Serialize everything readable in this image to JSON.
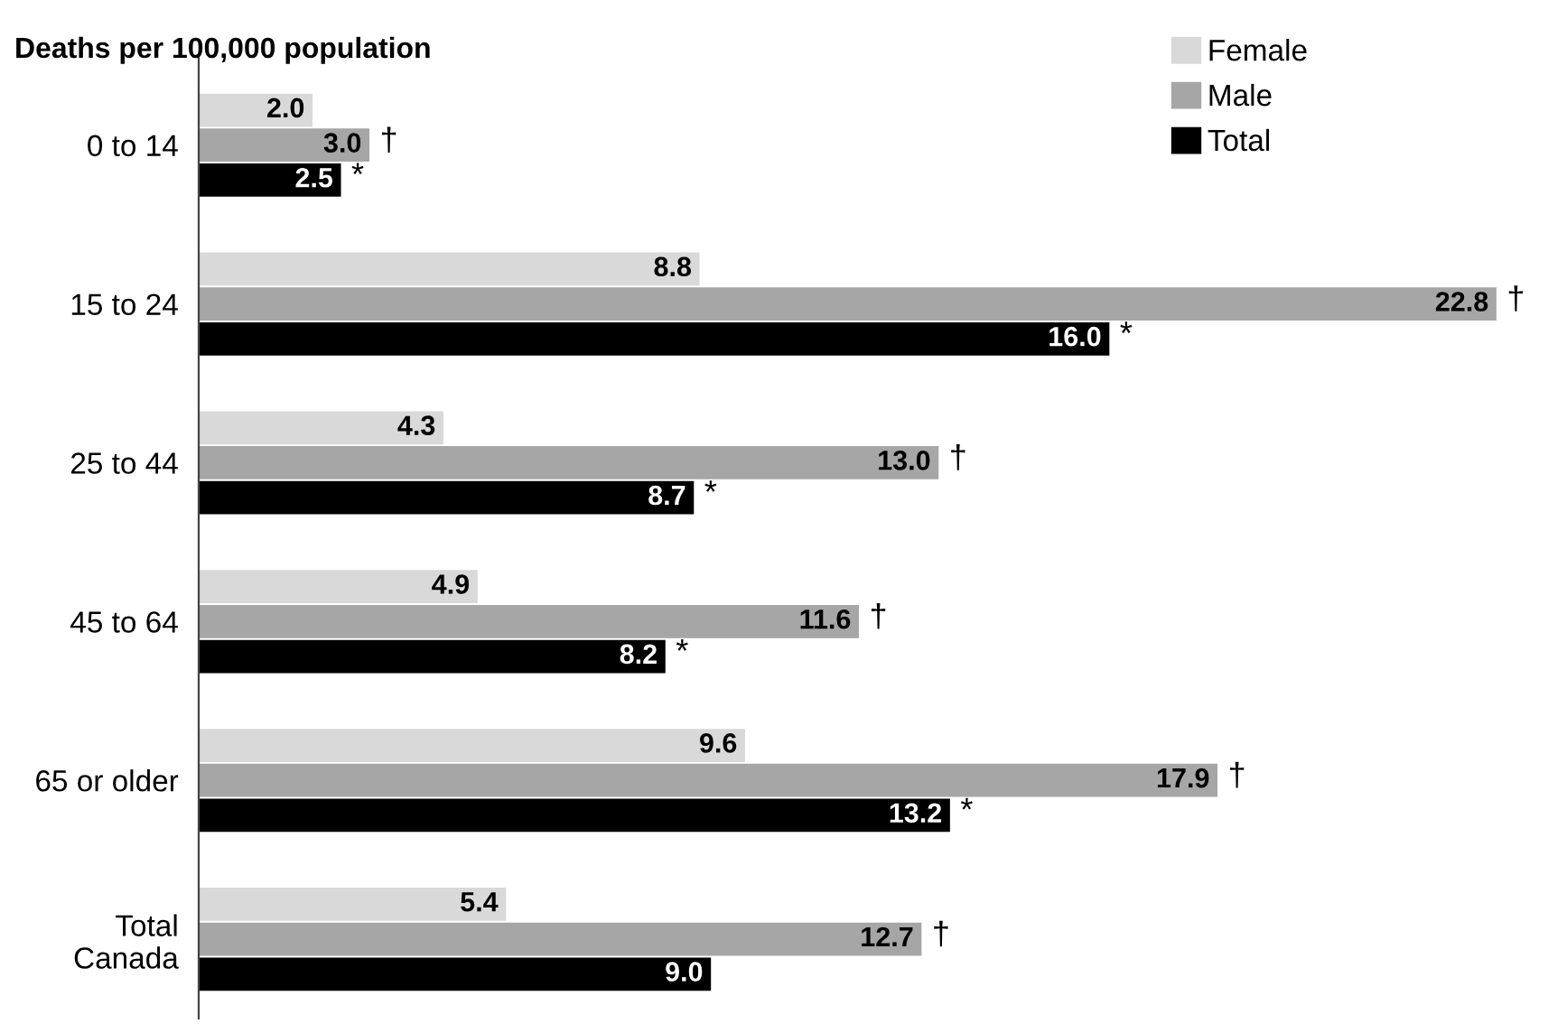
{
  "chart_data": {
    "type": "bar",
    "orientation": "horizontal",
    "title": "Deaths per 100,000 population",
    "categories": [
      "0 to 14",
      "15 to 24",
      "25 to 44",
      "45 to 64",
      "65 or older",
      "Total\nCanada"
    ],
    "series": [
      {
        "name": "Female",
        "color": "#d9d9d9",
        "values": [
          2.0,
          8.8,
          4.3,
          4.9,
          9.6,
          5.4
        ],
        "value_labels": [
          "2.0",
          "8.8",
          "4.3",
          "4.9",
          "9.6",
          "5.4"
        ]
      },
      {
        "name": "Male",
        "color": "#a6a6a6",
        "values": [
          3.0,
          22.8,
          13.0,
          11.6,
          17.9,
          12.7
        ],
        "value_labels": [
          "3.0 †",
          "22.8 †",
          "13.0 †",
          "11.6 †",
          "17.9 †",
          "12.7 †"
        ]
      },
      {
        "name": "Total",
        "color": "#000000",
        "values": [
          2.5,
          16.0,
          8.7,
          8.2,
          13.2,
          9.0
        ],
        "value_labels": [
          "2.5 *",
          "16.0 *",
          "8.7 *",
          "8.2 *",
          "13.2 *",
          "9.0"
        ]
      }
    ],
    "legend": "top right",
    "grid": false
  }
}
